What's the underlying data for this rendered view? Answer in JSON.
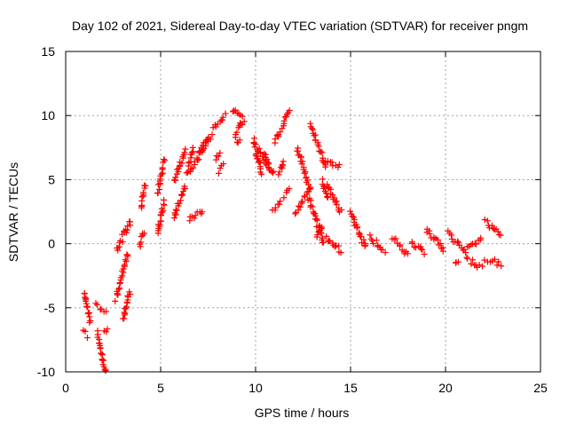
{
  "chart_data": {
    "type": "scatter",
    "title": "Day 102 of 2021, Sidereal Day-to-day VTEC variation (SDTVAR) for receiver pngm",
    "xlabel": "GPS time / hours",
    "ylabel": "SDTVAR / TECUs",
    "xlim": [
      0,
      25
    ],
    "ylim": [
      -10,
      15
    ],
    "xticks": [
      "0",
      "5",
      "10",
      "15",
      "20",
      "25"
    ],
    "yticks": [
      "-10",
      "-5",
      "0",
      "5",
      "10",
      "15"
    ],
    "grid": true,
    "marker": "+",
    "color": "#ff0000",
    "segments": [
      {
        "x0": 0.95,
        "x1": 1.3,
        "y0": -3.8,
        "y1": -6.0
      },
      {
        "x0": 0.95,
        "x1": 1.1,
        "y0": -6.8,
        "y1": -7.2
      },
      {
        "x0": 1.6,
        "x1": 2.1,
        "y0": -4.8,
        "y1": -5.3
      },
      {
        "x0": 1.65,
        "x1": 2.1,
        "y0": -7.0,
        "y1": -10.0
      },
      {
        "x0": 2.0,
        "x1": 2.2,
        "y0": -7.0,
        "y1": -6.8
      },
      {
        "x0": 2.7,
        "x1": 3.4,
        "y0": -0.5,
        "y1": 1.8
      },
      {
        "x0": 2.65,
        "x1": 3.25,
        "y0": -4.3,
        "y1": -0.8
      },
      {
        "x0": 3.05,
        "x1": 3.35,
        "y0": -6.0,
        "y1": -3.8
      },
      {
        "x0": 3.9,
        "x1": 4.1,
        "y0": -0.2,
        "y1": 0.9
      },
      {
        "x0": 3.95,
        "x1": 4.2,
        "y0": 2.8,
        "y1": 4.5
      },
      {
        "x0": 4.85,
        "x1": 5.2,
        "y0": 4.0,
        "y1": 6.5
      },
      {
        "x0": 4.85,
        "x1": 5.2,
        "y0": 0.8,
        "y1": 3.2
      },
      {
        "x0": 5.7,
        "x1": 6.3,
        "y0": 5.0,
        "y1": 7.2
      },
      {
        "x0": 5.7,
        "x1": 6.3,
        "y0": 2.0,
        "y1": 4.5
      },
      {
        "x0": 6.4,
        "x1": 6.7,
        "y0": 5.5,
        "y1": 7.5
      },
      {
        "x0": 6.5,
        "x1": 7.2,
        "y0": 1.8,
        "y1": 2.6
      },
      {
        "x0": 6.6,
        "x1": 7.5,
        "y0": 5.8,
        "y1": 8.0
      },
      {
        "x0": 7.0,
        "x1": 7.7,
        "y0": 7.2,
        "y1": 8.5
      },
      {
        "x0": 7.8,
        "x1": 8.4,
        "y0": 9.0,
        "y1": 10.0
      },
      {
        "x0": 7.9,
        "x1": 8.1,
        "y0": 6.5,
        "y1": 7.0
      },
      {
        "x0": 8.1,
        "x1": 8.3,
        "y0": 5.6,
        "y1": 6.1
      },
      {
        "x0": 8.8,
        "x1": 9.4,
        "y0": 10.5,
        "y1": 9.6
      },
      {
        "x0": 8.9,
        "x1": 9.3,
        "y0": 8.5,
        "y1": 9.5
      },
      {
        "x0": 9.0,
        "x1": 9.2,
        "y0": 7.8,
        "y1": 8.2
      },
      {
        "x0": 9.9,
        "x1": 10.3,
        "y0": 8.0,
        "y1": 5.5
      },
      {
        "x0": 10.1,
        "x1": 10.7,
        "y0": 7.5,
        "y1": 5.8
      },
      {
        "x0": 10.5,
        "x1": 10.9,
        "y0": 7.0,
        "y1": 5.5
      },
      {
        "x0": 11.0,
        "x1": 11.5,
        "y0": 8.0,
        "y1": 9.2
      },
      {
        "x0": 10.9,
        "x1": 11.3,
        "y0": 2.5,
        "y1": 3.2
      },
      {
        "x0": 11.2,
        "x1": 11.5,
        "y0": 5.5,
        "y1": 6.5
      },
      {
        "x0": 11.5,
        "x1": 11.8,
        "y0": 9.5,
        "y1": 10.3
      },
      {
        "x0": 11.5,
        "x1": 11.8,
        "y0": 3.8,
        "y1": 4.2
      },
      {
        "x0": 12.1,
        "x1": 12.9,
        "y0": 2.5,
        "y1": 4.5
      },
      {
        "x0": 12.2,
        "x1": 12.8,
        "y0": 7.5,
        "y1": 4.5
      },
      {
        "x0": 12.9,
        "x1": 13.7,
        "y0": 9.2,
        "y1": 6.0
      },
      {
        "x0": 12.8,
        "x1": 13.6,
        "y0": 3.5,
        "y1": 0.0
      },
      {
        "x0": 13.2,
        "x1": 13.5,
        "y0": 0.5,
        "y1": 1.5
      },
      {
        "x0": 13.5,
        "x1": 13.8,
        "y0": 5.0,
        "y1": 3.5
      },
      {
        "x0": 13.7,
        "x1": 14.4,
        "y0": 6.5,
        "y1": 6.0
      },
      {
        "x0": 13.8,
        "x1": 14.5,
        "y0": 4.5,
        "y1": 2.5
      },
      {
        "x0": 13.7,
        "x1": 14.5,
        "y0": 0.5,
        "y1": -0.6
      },
      {
        "x0": 15.0,
        "x1": 15.8,
        "y0": 2.5,
        "y1": -0.3
      },
      {
        "x0": 16.0,
        "x1": 16.8,
        "y0": 0.5,
        "y1": -0.6
      },
      {
        "x0": 17.2,
        "x1": 18.0,
        "y0": 0.5,
        "y1": -0.8
      },
      {
        "x0": 18.2,
        "x1": 18.9,
        "y0": 0.2,
        "y1": -0.7
      },
      {
        "x0": 19.0,
        "x1": 19.9,
        "y0": 1.2,
        "y1": -0.5
      },
      {
        "x0": 20.1,
        "x1": 21.0,
        "y0": 0.8,
        "y1": -0.5
      },
      {
        "x0": 20.5,
        "x1": 20.7,
        "y0": -1.6,
        "y1": -1.6
      },
      {
        "x0": 21.1,
        "x1": 21.9,
        "y0": -0.5,
        "y1": 0.5
      },
      {
        "x0": 21.1,
        "x1": 21.9,
        "y0": -1.2,
        "y1": -1.8
      },
      {
        "x0": 22.1,
        "x1": 22.9,
        "y0": 1.8,
        "y1": 0.6
      },
      {
        "x0": 22.1,
        "x1": 22.9,
        "y0": -1.2,
        "y1": -1.6
      }
    ]
  }
}
